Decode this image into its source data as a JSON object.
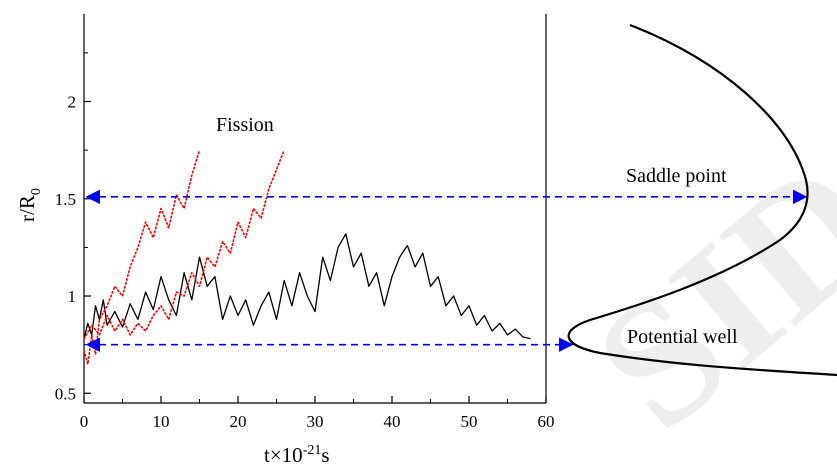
{
  "chart_data": {
    "type": "line",
    "xlabel": "t×10",
    "xlabel_exp": "-21",
    "xlabel_unit": "s",
    "ylabel": "r/R",
    "ylabel_sub": "0",
    "xlim": [
      0,
      60
    ],
    "ylim": [
      0.45,
      2.45
    ],
    "xticks": [
      "0",
      "10",
      "20",
      "30",
      "40",
      "50",
      "60"
    ],
    "yticks": [
      "0.5",
      "1",
      "1.5",
      "2"
    ],
    "grid": false,
    "series": [
      {
        "color": "#000000",
        "style": "solid",
        "x": [
          0,
          0.5,
          1,
          1.5,
          2,
          2.5,
          3,
          4,
          5,
          6,
          7,
          8,
          9,
          10,
          11,
          12,
          13,
          14,
          15,
          16,
          17,
          18,
          19,
          20,
          21,
          22,
          23,
          24,
          25,
          26,
          27,
          28,
          29,
          30,
          31,
          32,
          33,
          34,
          35,
          36,
          37,
          38,
          39,
          40,
          41,
          42,
          43,
          44,
          45,
          46,
          47,
          48,
          49,
          50,
          51,
          52,
          53,
          54,
          55,
          56,
          57,
          58
        ],
        "y": [
          0.78,
          0.86,
          0.8,
          0.95,
          0.88,
          0.98,
          0.85,
          0.92,
          0.84,
          0.96,
          0.88,
          1.02,
          0.93,
          1.1,
          0.98,
          0.9,
          1.12,
          0.98,
          1.2,
          1.05,
          1.1,
          0.88,
          1.0,
          0.9,
          0.98,
          0.85,
          0.95,
          1.02,
          0.88,
          1.08,
          0.95,
          1.12,
          1.0,
          0.92,
          1.2,
          1.08,
          1.25,
          1.32,
          1.15,
          1.22,
          1.05,
          1.12,
          0.95,
          1.1,
          1.2,
          1.26,
          1.15,
          1.22,
          1.05,
          1.1,
          0.95,
          1.0,
          0.9,
          0.95,
          0.85,
          0.9,
          0.82,
          0.86,
          0.8,
          0.83,
          0.79,
          0.78
        ]
      },
      {
        "color": "#ff0000",
        "style": "dotted",
        "x": [
          0,
          0.5,
          1,
          1.5,
          2,
          3,
          4,
          5,
          6,
          7,
          8,
          9,
          10,
          11,
          12,
          13,
          14,
          15
        ],
        "y": [
          0.72,
          0.65,
          0.8,
          0.7,
          0.88,
          0.95,
          1.05,
          1.0,
          1.15,
          1.25,
          1.38,
          1.3,
          1.45,
          1.35,
          1.52,
          1.45,
          1.62,
          1.75
        ]
      },
      {
        "color": "#ff0000",
        "style": "dotted",
        "x": [
          0,
          1,
          2,
          3,
          4,
          5,
          6,
          7,
          8,
          9,
          10,
          11,
          12,
          13,
          14,
          15,
          16,
          17,
          18,
          19,
          20,
          21,
          22,
          23,
          24,
          25,
          26
        ],
        "y": [
          0.78,
          0.85,
          0.8,
          0.9,
          0.82,
          0.88,
          0.8,
          0.86,
          0.82,
          0.9,
          0.95,
          0.88,
          1.02,
          1.0,
          1.12,
          1.05,
          1.2,
          1.15,
          1.28,
          1.22,
          1.38,
          1.3,
          1.45,
          1.4,
          1.55,
          1.65,
          1.75
        ]
      }
    ],
    "reference_lines": [
      {
        "y": 1.51,
        "color": "#0000ee",
        "style": "dashed",
        "arrows": "both",
        "label": "Saddle point"
      },
      {
        "y": 0.75,
        "color": "#0000ee",
        "style": "dashed",
        "arrows": "both",
        "label": "Potential well"
      }
    ],
    "annotations": [
      {
        "text": "Fission"
      }
    ]
  },
  "watermark": "SID"
}
